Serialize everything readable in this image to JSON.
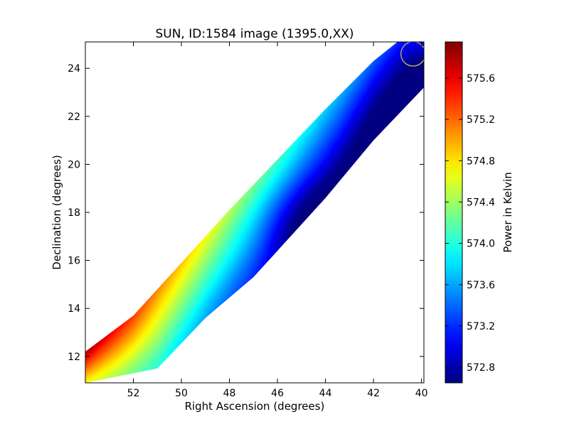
{
  "chart_data": {
    "type": "heatmap",
    "title": "SUN, ID:1584 image (1395.0,XX)",
    "xlabel": "Right Ascension (degrees)",
    "ylabel": "Declination (degrees)",
    "xlim": [
      54.0,
      39.9
    ],
    "ylim": [
      10.9,
      25.1
    ],
    "x_inverted": true,
    "x_ticks": [
      52,
      50,
      48,
      46,
      44,
      42,
      40
    ],
    "y_ticks": [
      12,
      14,
      16,
      18,
      20,
      22,
      24
    ],
    "colormap": "jet",
    "grid": false,
    "colorbar": {
      "label": "Power in Kelvin",
      "vmin": 572.65,
      "vmax": 575.95,
      "ticks": [
        572.8,
        573.2,
        573.6,
        574.0,
        574.4,
        574.8,
        575.2,
        575.6
      ],
      "tick_labels": [
        "572.8",
        "573.2",
        "573.6",
        "574.0",
        "574.4",
        "574.8",
        "575.2",
        "575.6"
      ]
    },
    "band": {
      "upper_edge": [
        {
          "ra": 54.0,
          "dec": 12.2
        },
        {
          "ra": 52.0,
          "dec": 13.7
        },
        {
          "ra": 50.0,
          "dec": 15.9
        },
        {
          "ra": 48.0,
          "dec": 18.1
        },
        {
          "ra": 46.0,
          "dec": 20.2
        },
        {
          "ra": 44.0,
          "dec": 22.3
        },
        {
          "ra": 42.0,
          "dec": 24.3
        },
        {
          "ra": 41.0,
          "dec": 25.1
        }
      ],
      "lower_edge": [
        {
          "ra": 54.0,
          "dec": 10.9
        },
        {
          "ra": 51.0,
          "dec": 11.5
        },
        {
          "ra": 49.0,
          "dec": 13.6
        },
        {
          "ra": 47.0,
          "dec": 15.3
        },
        {
          "ra": 44.0,
          "dec": 18.6
        },
        {
          "ra": 42.0,
          "dec": 21.0
        },
        {
          "ra": 39.9,
          "dec": 23.2
        }
      ],
      "along_band_profile": [
        {
          "ra": 54.0,
          "value": 575.85
        },
        {
          "ra": 52.5,
          "value": 575.5
        },
        {
          "ra": 51.0,
          "value": 575.1
        },
        {
          "ra": 49.5,
          "value": 574.8
        },
        {
          "ra": 48.0,
          "value": 574.5
        },
        {
          "ra": 46.5,
          "value": 574.2
        },
        {
          "ra": 45.0,
          "value": 573.9
        },
        {
          "ra": 43.5,
          "value": 573.65
        },
        {
          "ra": 42.0,
          "value": 573.35
        },
        {
          "ra": 40.5,
          "value": 573.1
        }
      ],
      "lower_side_minimum": {
        "ra": 44.5,
        "dec": 17.6,
        "value": 572.7
      }
    },
    "beam_marker": {
      "ra": 40.35,
      "dec": 24.6,
      "radius_deg": 0.3,
      "color": "#c8b85a"
    }
  }
}
